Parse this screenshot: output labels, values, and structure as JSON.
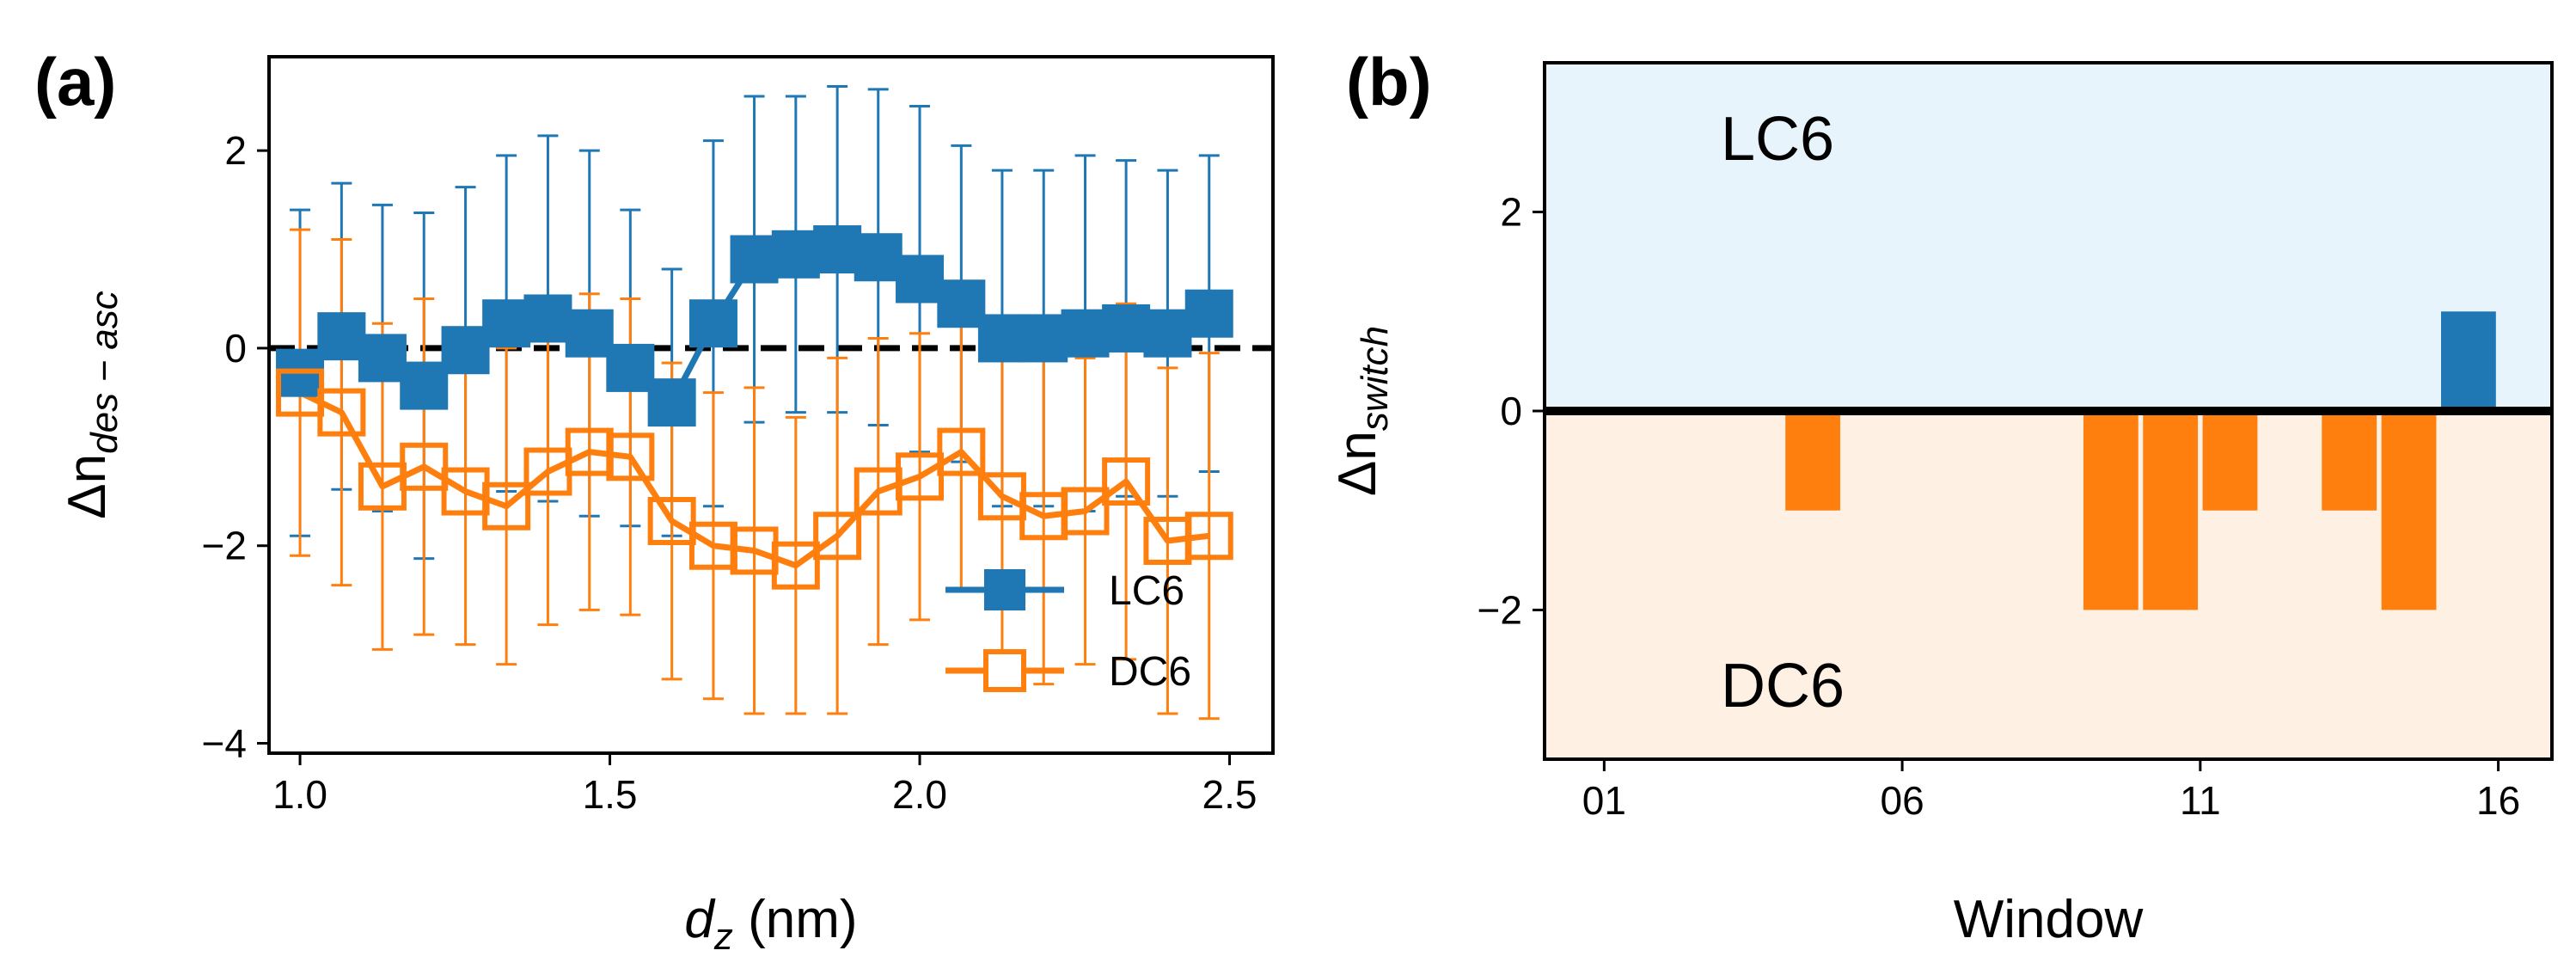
{
  "chart_data": [
    {
      "panel": "(a)",
      "type": "line",
      "xlabel_var": "d",
      "xlabel_sub": "z",
      "xlabel_unit": " (nm)",
      "ylabel_main": "Δn",
      "ylabel_sub": "des − asc",
      "xlim": [
        0.95,
        2.57
      ],
      "ylim": [
        -4.1,
        2.95
      ],
      "xticks": [
        1.0,
        1.5,
        2.0,
        2.5
      ],
      "xtick_labels": [
        "1.0",
        "1.5",
        "2.0",
        "2.5"
      ],
      "yticks": [
        2,
        0,
        -2,
        -4
      ],
      "ytick_labels": [
        "2",
        "0",
        "−2",
        "−4"
      ],
      "reference_line": 0,
      "legend_position": "lower-right",
      "series": [
        {
          "name": "LC6",
          "color": "#1f77b4",
          "marker": "filled-square",
          "x": [
            1.0,
            1.067,
            1.133,
            1.2,
            1.267,
            1.333,
            1.4,
            1.467,
            1.533,
            1.6,
            1.667,
            1.733,
            1.8,
            1.867,
            1.933,
            2.0,
            2.067,
            2.133,
            2.2,
            2.267,
            2.333,
            2.4,
            2.467
          ],
          "y": [
            -0.25,
            0.12,
            -0.1,
            -0.38,
            -0.02,
            0.25,
            0.3,
            0.15,
            -0.2,
            -0.55,
            0.25,
            0.9,
            0.95,
            1.0,
            0.92,
            0.7,
            0.45,
            0.1,
            0.1,
            0.15,
            0.2,
            0.15,
            0.35
          ],
          "err": [
            1.65,
            1.55,
            1.55,
            1.75,
            1.65,
            1.7,
            1.85,
            1.85,
            1.6,
            1.35,
            1.85,
            1.65,
            1.6,
            1.65,
            1.7,
            1.75,
            1.6,
            1.7,
            1.7,
            1.8,
            1.7,
            1.65,
            1.6
          ]
        },
        {
          "name": "DC6",
          "color": "#ff7f0e",
          "marker": "open-square",
          "x": [
            1.0,
            1.067,
            1.133,
            1.2,
            1.267,
            1.333,
            1.4,
            1.467,
            1.533,
            1.6,
            1.667,
            1.733,
            1.8,
            1.867,
            1.933,
            2.0,
            2.067,
            2.133,
            2.2,
            2.267,
            2.333,
            2.4,
            2.467
          ],
          "y": [
            -0.45,
            -0.65,
            -1.4,
            -1.2,
            -1.45,
            -1.6,
            -1.25,
            -1.05,
            -1.1,
            -1.75,
            -2.0,
            -2.05,
            -2.2,
            -1.9,
            -1.45,
            -1.3,
            -1.05,
            -1.5,
            -1.7,
            -1.65,
            -1.35,
            -1.95,
            -1.9
          ],
          "err": [
            1.65,
            1.75,
            1.65,
            1.7,
            1.55,
            1.6,
            1.55,
            1.6,
            1.6,
            1.6,
            1.55,
            1.65,
            1.5,
            1.8,
            1.55,
            1.45,
            1.4,
            1.8,
            1.7,
            1.55,
            1.8,
            1.75,
            1.85
          ]
        }
      ]
    },
    {
      "panel": "(b)",
      "type": "bar",
      "xlabel": "Window",
      "ylabel_main": "Δn",
      "ylabel_sub": "switch",
      "xlim": [
        0,
        16.9
      ],
      "ylim": [
        -3.5,
        3.5
      ],
      "xticks": [
        1,
        6,
        11,
        16
      ],
      "xtick_labels": [
        "01",
        "06",
        "11",
        "16"
      ],
      "yticks": [
        2,
        0,
        -2
      ],
      "ytick_labels": [
        "2",
        "0",
        "−2"
      ],
      "regions": [
        {
          "label": "LC6",
          "range": [
            0,
            3.5
          ],
          "color": "#e8f4fb"
        },
        {
          "label": "DC6",
          "range": [
            -3.5,
            0
          ],
          "color": "#fff0e4"
        }
      ],
      "bars": [
        {
          "window": 4,
          "value": -1
        },
        {
          "window": 9,
          "value": -2
        },
        {
          "window": 10,
          "value": -2
        },
        {
          "window": 11,
          "value": -1
        },
        {
          "window": 13,
          "value": -1
        },
        {
          "window": 14,
          "value": -2
        },
        {
          "window": 15,
          "value": 1
        }
      ],
      "positive_color": "#1f77b4",
      "negative_color": "#ff7f0e"
    }
  ]
}
